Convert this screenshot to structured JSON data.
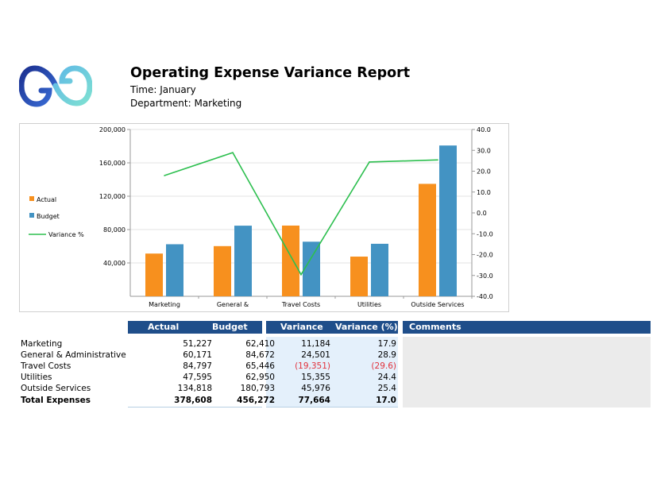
{
  "report": {
    "title": "Operating Expense Variance Report",
    "time": "Time: January",
    "department": "Department: Marketing"
  },
  "colors": {
    "actual": "#f7901e",
    "budget": "#4393c3",
    "variance": "#2dbf4f",
    "header": "#1f4e8a",
    "negative": "#e2323c"
  },
  "chart_data": {
    "type": "bar",
    "categories": [
      "Marketing",
      "General &",
      "Travel Costs",
      "Utilities",
      "Outside Services"
    ],
    "series": [
      {
        "name": "Actual",
        "type": "bar",
        "axis": "left",
        "values": [
          51227,
          60171,
          84797,
          47595,
          134818
        ]
      },
      {
        "name": "Budget",
        "type": "bar",
        "axis": "left",
        "values": [
          62410,
          84672,
          65446,
          62950,
          180793
        ]
      },
      {
        "name": "Variance %",
        "type": "line",
        "axis": "right",
        "values": [
          17.9,
          28.9,
          -29.6,
          24.4,
          25.4
        ]
      }
    ],
    "y_left": {
      "ticks": [
        "40,000",
        "80,000",
        "120,000",
        "160,000",
        "200,000"
      ],
      "tick_values": [
        40000,
        80000,
        120000,
        160000,
        200000
      ],
      "range": [
        0,
        200000
      ]
    },
    "y_right": {
      "ticks": [
        "-40.0",
        "-30.0",
        "-20.0",
        "-10.0",
        "0.0",
        "10.0",
        "20.0",
        "30.0",
        "40.0"
      ],
      "tick_values": [
        -40,
        -30,
        -20,
        -10,
        0,
        10,
        20,
        30,
        40
      ],
      "range": [
        -40,
        40
      ]
    },
    "legend": {
      "placement": "left",
      "items": [
        "Actual",
        "Budget",
        "Variance %"
      ]
    },
    "grid": true
  },
  "table": {
    "headers": {
      "actual": "Actual",
      "budget": "Budget",
      "variance": "Variance",
      "variance_pct": "Variance (%)",
      "comments": "Comments"
    },
    "rows": [
      {
        "label": "Marketing",
        "actual": "51,227",
        "budget": "62,410",
        "variance": "11,184",
        "variance_pct": "17.9"
      },
      {
        "label": "General & Administrative",
        "actual": "60,171",
        "budget": "84,672",
        "variance": "24,501",
        "variance_pct": "28.9"
      },
      {
        "label": "Travel Costs",
        "actual": "84,797",
        "budget": "65,446",
        "variance": "(19,351)",
        "variance_pct": "(29.6)"
      },
      {
        "label": "Utilities",
        "actual": "47,595",
        "budget": "62,950",
        "variance": "15,355",
        "variance_pct": "24.4"
      },
      {
        "label": "Outside Services",
        "actual": "134,818",
        "budget": "180,793",
        "variance": "45,976",
        "variance_pct": "25.4"
      }
    ],
    "total": {
      "label": "Total Expenses",
      "actual": "378,608",
      "budget": "456,272",
      "variance": "77,664",
      "variance_pct": "17.0"
    }
  }
}
